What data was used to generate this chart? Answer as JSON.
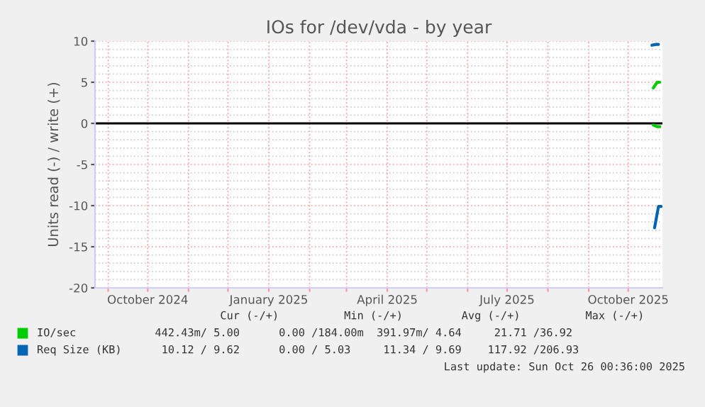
{
  "chart_data": {
    "type": "line",
    "title": "IOs for /dev/vda - by year",
    "ylabel": "Units read (-) / write (+)",
    "xlim": [
      "2024-08-22",
      "2025-10-27"
    ],
    "xticks": [
      {
        "value": "2024-09-01",
        "label": null
      },
      {
        "value": "2024-10-01",
        "label": "October 2024"
      },
      {
        "value": "2024-11-01",
        "label": null
      },
      {
        "value": "2024-12-01",
        "label": null
      },
      {
        "value": "2025-01-01",
        "label": "January 2025"
      },
      {
        "value": "2025-02-01",
        "label": null
      },
      {
        "value": "2025-03-01",
        "label": null
      },
      {
        "value": "2025-04-01",
        "label": "April 2025"
      },
      {
        "value": "2025-05-01",
        "label": null
      },
      {
        "value": "2025-06-01",
        "label": null
      },
      {
        "value": "2025-07-01",
        "label": "July 2025"
      },
      {
        "value": "2025-08-01",
        "label": null
      },
      {
        "value": "2025-09-01",
        "label": null
      },
      {
        "value": "2025-10-01",
        "label": "October 2025"
      }
    ],
    "ylim": [
      -20,
      10
    ],
    "yticks": [
      -20,
      -15,
      -10,
      -5,
      0,
      5,
      10
    ],
    "grid": true,
    "legend": "bottom left",
    "ref_lines": [
      {
        "axis": "y",
        "value": 0,
        "color": "#000000"
      }
    ],
    "series": [
      {
        "name": "IO/sec",
        "color": "#00cc00",
        "x": [
          "2025-10-20",
          "2025-10-23",
          "2025-10-25"
        ],
        "values": [
          4.3,
          5.0,
          5.0
        ]
      },
      {
        "color": "#00cc00",
        "x": [
          "2025-10-20",
          "2025-10-23",
          "2025-10-25"
        ],
        "values": [
          -0.2,
          -0.4,
          -0.4
        ]
      },
      {
        "color": "#0066b3",
        "x": [
          "2025-10-21",
          "2025-10-24",
          "2025-10-26"
        ],
        "values": [
          -12.7,
          -10.1,
          -10.1
        ]
      },
      {
        "name": "Req Size (KB)",
        "color": "#0066b3",
        "x": [
          "2025-10-19",
          "2025-10-22",
          "2025-10-24"
        ],
        "values": [
          9.5,
          9.6,
          9.6
        ]
      }
    ],
    "annotations": [
      "            Cur (-/+)          Min (-/+)         Avg (-/+)          Max (-/+)",
      "  442.43m/ 5.00      0.00 /184.00m  391.97m/ 4.64     21.71 /36.92",
      "   10.12 / 9.62      0.00 / 5.03     11.34 / 9.69    117.92 /206.93",
      "Last update: Sun Oct 26 00:36:00 2025"
    ]
  }
}
